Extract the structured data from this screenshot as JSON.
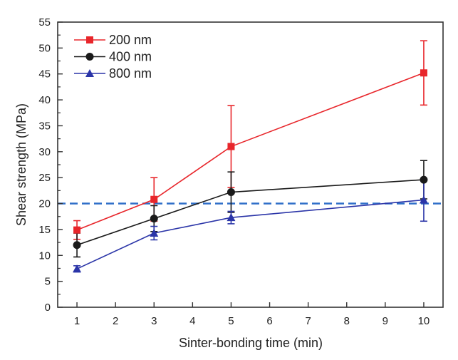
{
  "chart_data": {
    "type": "line",
    "title": "",
    "xlabel": "Sinter-bonding time (min)",
    "ylabel": "Shear strength (MPa)",
    "xlim": [
      0.5,
      10.5
    ],
    "ylim": [
      0,
      55
    ],
    "xticks": [
      1,
      2,
      3,
      4,
      5,
      6,
      7,
      8,
      9,
      10
    ],
    "yticks": [
      0,
      5,
      10,
      15,
      20,
      25,
      30,
      35,
      40,
      45,
      50,
      55
    ],
    "grid": false,
    "legend_position": "top-left",
    "x": [
      1,
      3,
      5,
      10
    ],
    "series": [
      {
        "name": "200 nm",
        "color": "#e8262b",
        "marker": "square",
        "values": [
          14.9,
          20.8,
          31.0,
          45.2
        ],
        "error": [
          1.8,
          4.2,
          7.9,
          6.2
        ]
      },
      {
        "name": "400 nm",
        "color": "#1a1a1a",
        "marker": "circle",
        "values": [
          12.0,
          17.1,
          22.2,
          24.6
        ],
        "error": [
          2.3,
          2.5,
          3.9,
          3.7
        ]
      },
      {
        "name": "800 nm",
        "color": "#2b35a8",
        "marker": "triangle",
        "values": [
          7.4,
          14.3,
          17.3,
          20.7
        ],
        "error": [
          0.6,
          1.3,
          1.2,
          4.1
        ]
      }
    ],
    "reference_line": {
      "y": 20,
      "style": "dashed",
      "color": "#2f6fc9"
    }
  }
}
